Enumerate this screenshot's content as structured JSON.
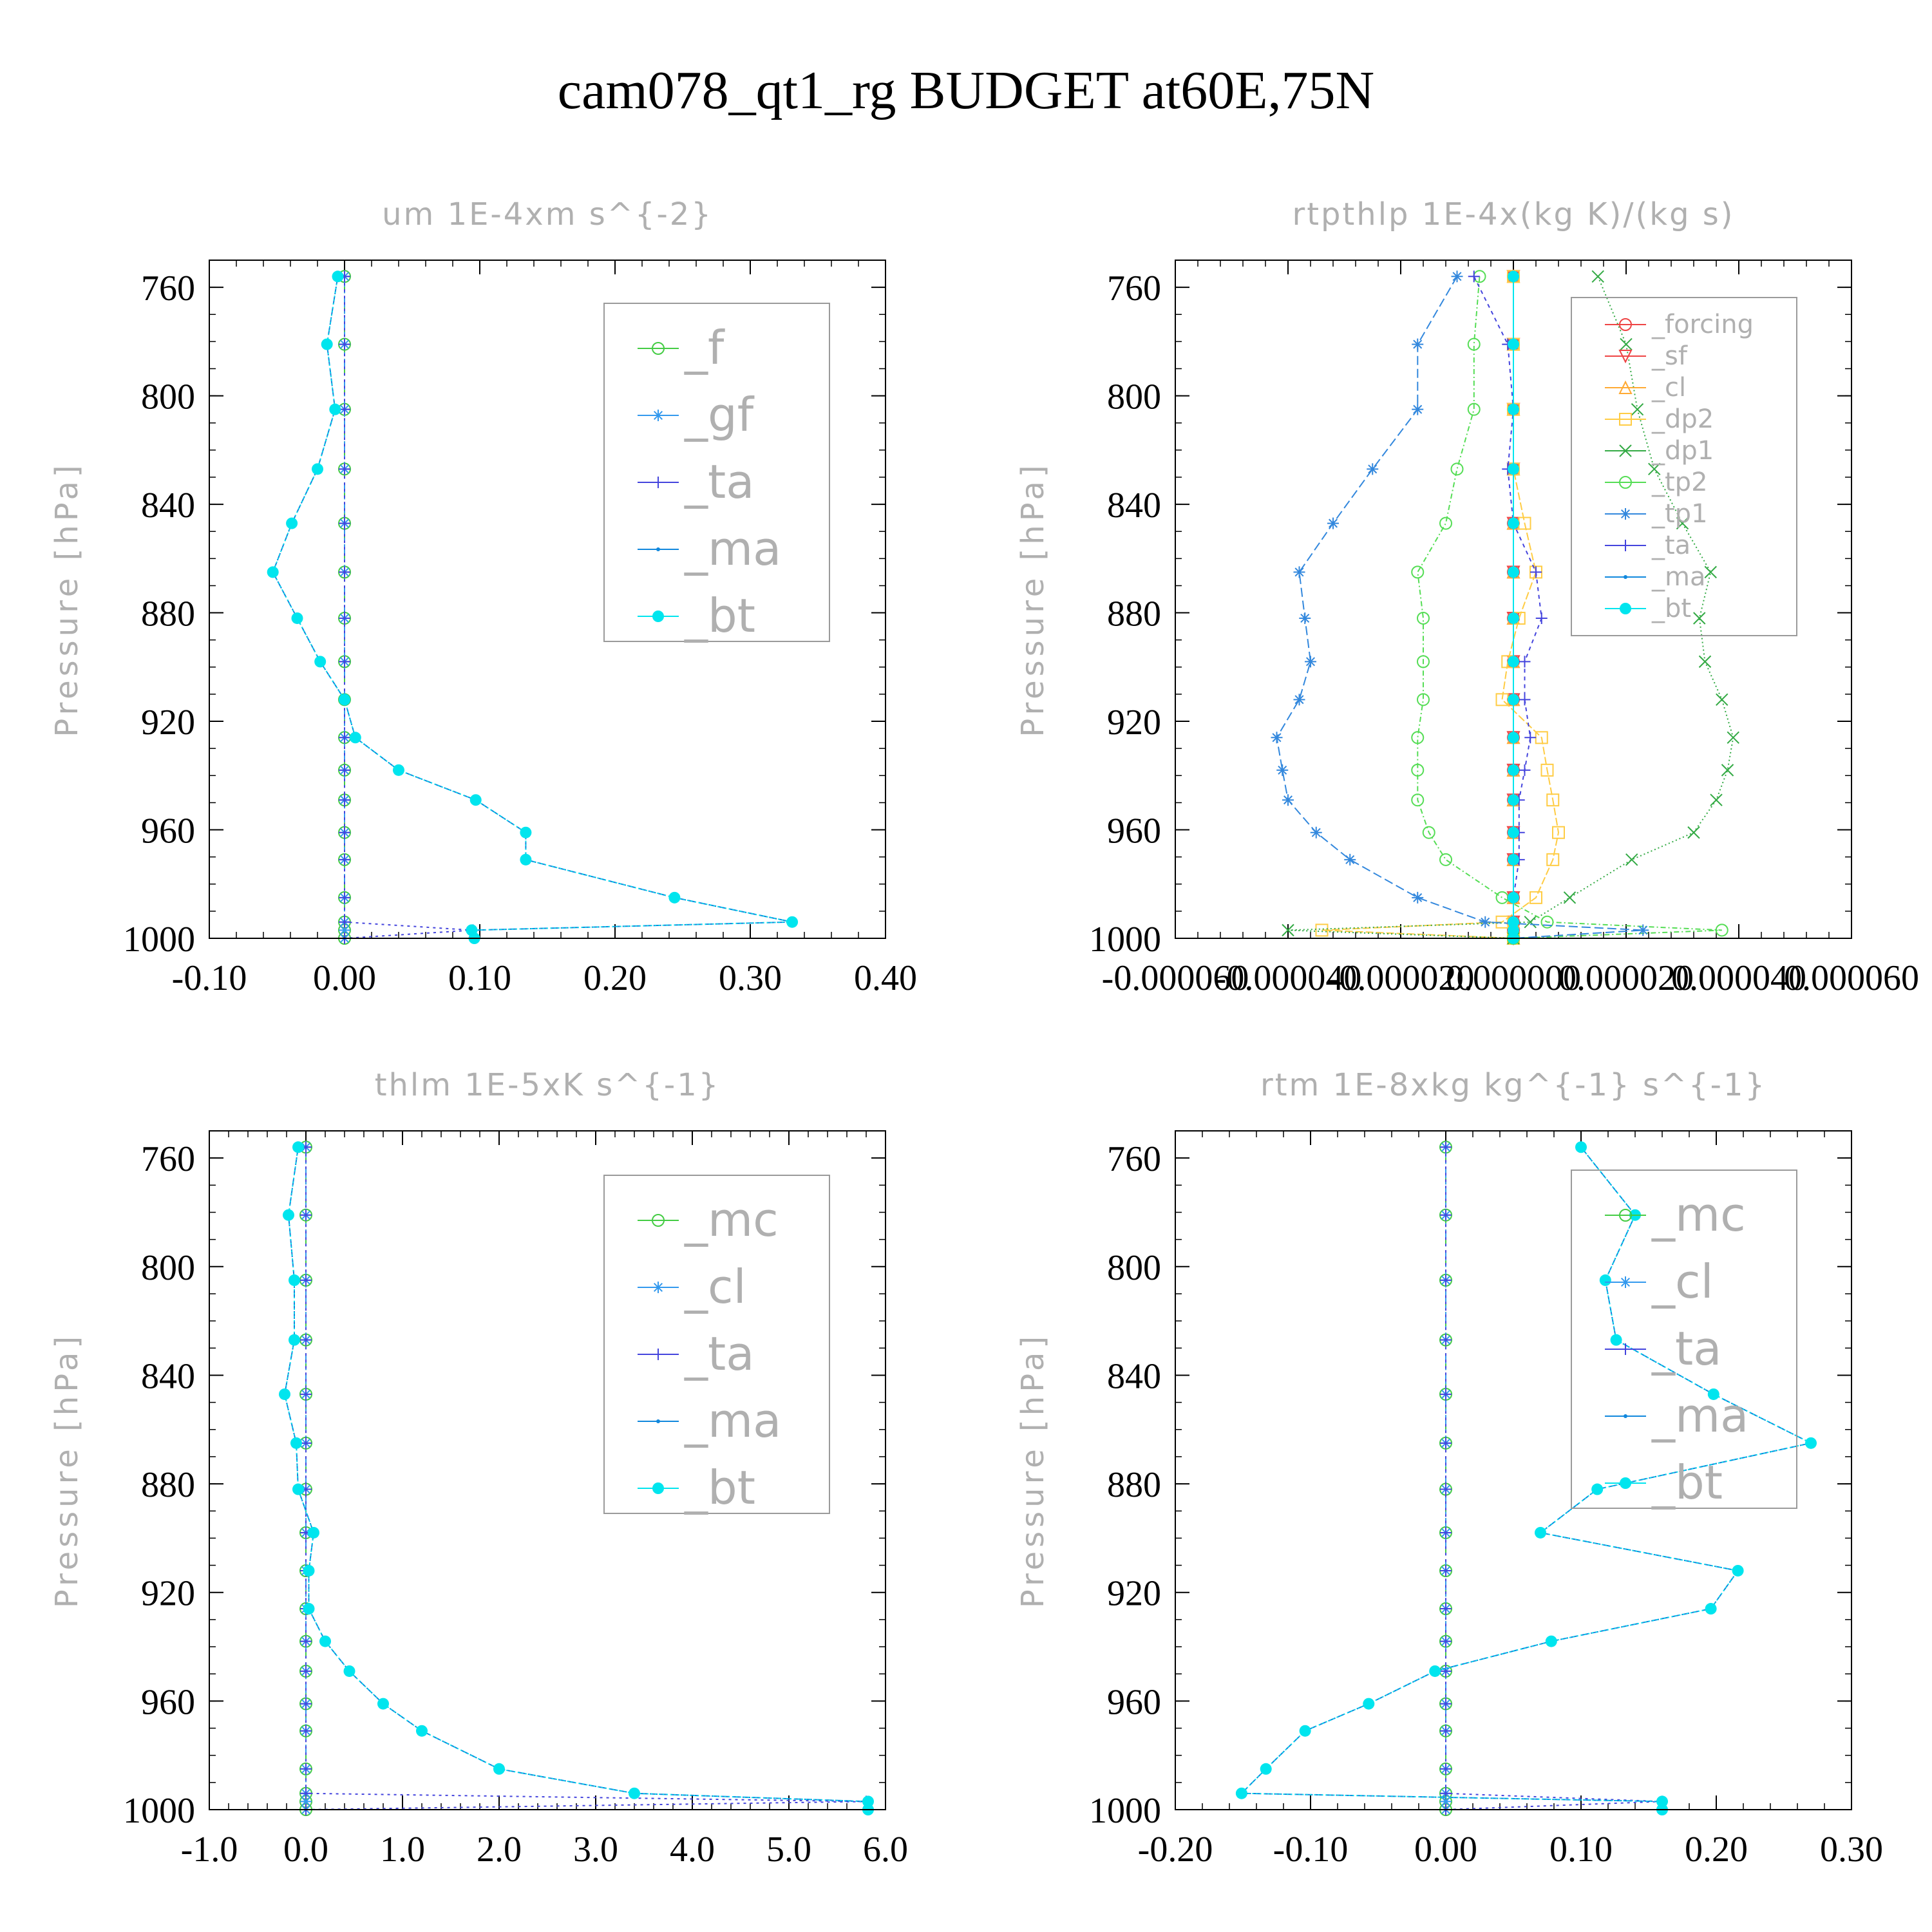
{
  "figure_title": "cam078_qt1_rg  BUDGET at60E,75N",
  "chart_data": [
    {
      "type": "line",
      "title": "um  1E-4xm s^{-2}",
      "ylabel": "Pressure [hPa]",
      "xlim": [
        -0.1,
        0.4
      ],
      "x_ticks": [
        "-0.10",
        "0.00",
        "0.10",
        "0.20",
        "0.30",
        "0.40"
      ],
      "ylim": [
        750,
        1000
      ],
      "y_ticks": [
        "760",
        "800",
        "840",
        "880",
        "920",
        "960",
        "1000"
      ],
      "y_values": [
        756,
        781,
        805,
        827,
        847,
        865,
        882,
        898,
        912,
        926,
        938,
        949,
        961,
        971,
        985,
        994,
        997,
        1000
      ],
      "legend": [
        "_f",
        "_gf",
        "_ta",
        "_ma",
        "_bt"
      ],
      "series": [
        {
          "name": "_f",
          "color": "#44cc44",
          "marker": "circle",
          "values": [
            0,
            0,
            0,
            0,
            0,
            0,
            0,
            0,
            0,
            0,
            0,
            0,
            0,
            0,
            0,
            0,
            0,
            0
          ]
        },
        {
          "name": "_gf",
          "color": "#3399ee",
          "marker": "star",
          "values": [
            0,
            0,
            0,
            0,
            0,
            0,
            0,
            0,
            0,
            0,
            0,
            0,
            0,
            0,
            0,
            0,
            0,
            0
          ]
        },
        {
          "name": "_ta",
          "color": "#4444dd",
          "marker": "plus",
          "values": [
            0,
            0,
            0,
            0,
            0,
            0,
            0,
            0,
            0,
            0,
            0,
            0,
            0,
            0,
            0,
            0,
            0.095,
            0
          ]
        },
        {
          "name": "_ma",
          "color": "#1188dd",
          "marker": "dot",
          "values": [
            -0.005,
            -0.013,
            -0.007,
            -0.02,
            -0.039,
            -0.053,
            -0.035,
            -0.018,
            0,
            0.008,
            0.04,
            0.097,
            0.134,
            0.134,
            0.244,
            0.331,
            0.094,
            0.096
          ]
        },
        {
          "name": "_bt",
          "color": "#00e5ee",
          "marker": "bigdot",
          "values": [
            -0.005,
            -0.013,
            -0.007,
            -0.02,
            -0.039,
            -0.053,
            -0.035,
            -0.018,
            0,
            0.008,
            0.04,
            0.097,
            0.134,
            0.134,
            0.244,
            0.331,
            0.094,
            0.096
          ]
        }
      ]
    },
    {
      "type": "line",
      "title": "rtpthlp  1E-4x(kg K)/(kg s)",
      "ylabel": "Pressure [hPa]",
      "xlim": [
        -6e-05,
        6e-05
      ],
      "x_ticks": [
        "-0.000060",
        "-0.000040",
        "-0.000020",
        "0.000000",
        "0.000020",
        "0.000040",
        "0.000060"
      ],
      "ylim": [
        750,
        1000
      ],
      "y_ticks": [
        "760",
        "800",
        "840",
        "880",
        "920",
        "960",
        "1000"
      ],
      "y_values": [
        756,
        781,
        805,
        827,
        847,
        865,
        882,
        898,
        912,
        926,
        938,
        949,
        961,
        971,
        985,
        994,
        997,
        1000
      ],
      "legend": [
        "_forcing",
        "_sf",
        "_cl",
        "_dp2",
        "_dp1",
        "_tp2",
        "_tp1",
        "_ta",
        "_ma",
        "_bt"
      ],
      "series": [
        {
          "name": "_forcing",
          "color": "#ee4444",
          "marker": "circle",
          "values": [
            0,
            0,
            0,
            0,
            0,
            0,
            0,
            0,
            0,
            0,
            0,
            0,
            0,
            0,
            0,
            0,
            0,
            0
          ]
        },
        {
          "name": "_sf",
          "color": "#ee4444",
          "marker": "triangle-down",
          "values": [
            0,
            0,
            0,
            0,
            0,
            0,
            0,
            0,
            0,
            0,
            0,
            0,
            0,
            0,
            0,
            0,
            0,
            0
          ]
        },
        {
          "name": "_cl",
          "color": "#ffaa33",
          "marker": "triangle-up",
          "values": [
            0,
            0,
            0,
            0,
            0,
            0,
            0,
            0,
            0,
            0,
            0,
            0,
            0,
            0,
            0,
            0,
            0,
            0
          ]
        },
        {
          "name": "_dp2",
          "color": "#ffcc44",
          "marker": "square",
          "values": [
            0,
            0,
            0,
            0,
            2e-06,
            4e-06,
            1e-06,
            -1e-06,
            -2e-06,
            5e-06,
            6e-06,
            7e-06,
            8e-06,
            7e-06,
            4e-06,
            -2e-06,
            -3.4e-05,
            0
          ]
        },
        {
          "name": "_dp1",
          "color": "#33aa44",
          "marker": "cross",
          "values": [
            1.5e-05,
            2e-05,
            2.2e-05,
            2.5e-05,
            3e-05,
            3.5e-05,
            3.3e-05,
            3.4e-05,
            3.7e-05,
            3.9e-05,
            3.8e-05,
            3.6e-05,
            3.2e-05,
            2.1e-05,
            1e-05,
            3e-06,
            -4e-05,
            0
          ]
        },
        {
          "name": "_tp2",
          "color": "#55dd55",
          "marker": "circle",
          "values": [
            -6e-06,
            -7e-06,
            -7e-06,
            -1e-05,
            -1.2e-05,
            -1.7e-05,
            -1.6e-05,
            -1.6e-05,
            -1.6e-05,
            -1.7e-05,
            -1.7e-05,
            -1.7e-05,
            -1.5e-05,
            -1.2e-05,
            -2e-06,
            6e-06,
            3.7e-05,
            0
          ]
        },
        {
          "name": "_tp1",
          "color": "#3388dd",
          "marker": "star",
          "values": [
            -1e-05,
            -1.7e-05,
            -1.7e-05,
            -2.5e-05,
            -3.2e-05,
            -3.8e-05,
            -3.7e-05,
            -3.6e-05,
            -3.8e-05,
            -4.2e-05,
            -4.1e-05,
            -4e-05,
            -3.5e-05,
            -2.9e-05,
            -1.7e-05,
            -5e-06,
            2.3e-05,
            0
          ]
        },
        {
          "name": "_ta",
          "color": "#4444dd",
          "marker": "plus",
          "values": [
            -7e-06,
            -1e-06,
            0,
            -1e-06,
            0,
            4e-06,
            5e-06,
            2e-06,
            2e-06,
            3e-06,
            2e-06,
            1e-06,
            1e-06,
            1e-06,
            0,
            0,
            0,
            0
          ]
        },
        {
          "name": "_ma",
          "color": "#1188dd",
          "marker": "dot",
          "values": [
            0,
            0,
            0,
            0,
            0,
            0,
            0,
            0,
            0,
            0,
            0,
            0,
            0,
            0,
            0,
            0,
            0,
            0
          ]
        },
        {
          "name": "_bt",
          "color": "#00e5ee",
          "marker": "bigdot",
          "values": [
            0,
            0,
            0,
            0,
            0,
            0,
            0,
            0,
            0,
            0,
            0,
            0,
            0,
            0,
            0,
            0,
            0,
            0
          ]
        }
      ]
    },
    {
      "type": "line",
      "title": "thlm  1E-5xK s^{-1}",
      "ylabel": "Pressure [hPa]",
      "xlim": [
        -1.0,
        6.0
      ],
      "x_ticks": [
        "-1.0",
        "0.0",
        "1.0",
        "2.0",
        "3.0",
        "4.0",
        "5.0",
        "6.0"
      ],
      "ylim": [
        750,
        1000
      ],
      "y_ticks": [
        "760",
        "800",
        "840",
        "880",
        "920",
        "960",
        "1000"
      ],
      "y_values": [
        756,
        781,
        805,
        827,
        847,
        865,
        882,
        898,
        912,
        926,
        938,
        949,
        961,
        971,
        985,
        994,
        997,
        1000
      ],
      "legend": [
        "_mc",
        "_cl",
        "_ta",
        "_ma",
        "_bt"
      ],
      "series": [
        {
          "name": "_mc",
          "color": "#44cc44",
          "marker": "circle",
          "values": [
            0,
            0,
            0,
            0,
            0,
            0,
            0,
            0,
            0,
            0,
            0,
            0,
            0,
            0,
            0,
            0,
            0,
            0
          ]
        },
        {
          "name": "_cl",
          "color": "#3399ee",
          "marker": "star",
          "values": [
            0,
            0,
            0,
            0,
            0,
            0,
            0,
            0,
            0,
            0,
            0,
            0,
            0,
            0,
            0,
            0,
            0,
            0
          ]
        },
        {
          "name": "_ta",
          "color": "#4444dd",
          "marker": "plus",
          "values": [
            0,
            0,
            0,
            0,
            0,
            0,
            0,
            0,
            0,
            0,
            0,
            0,
            0,
            0,
            0,
            0,
            5.8,
            0
          ]
        },
        {
          "name": "_ma",
          "color": "#1188dd",
          "marker": "dot",
          "values": [
            -0.08,
            -0.18,
            -0.12,
            -0.12,
            -0.22,
            -0.1,
            -0.08,
            0.08,
            0.03,
            0.03,
            0.2,
            0.45,
            0.8,
            1.2,
            2.0,
            3.4,
            5.82,
            5.82
          ]
        },
        {
          "name": "_bt",
          "color": "#00e5ee",
          "marker": "bigdot",
          "values": [
            -0.08,
            -0.18,
            -0.12,
            -0.12,
            -0.22,
            -0.1,
            -0.08,
            0.08,
            0.03,
            0.03,
            0.2,
            0.45,
            0.8,
            1.2,
            2.0,
            3.4,
            5.82,
            5.82
          ]
        }
      ]
    },
    {
      "type": "line",
      "title": "rtm  1E-8xkg kg^{-1} s^{-1}",
      "ylabel": "Pressure [hPa]",
      "xlim": [
        -0.2,
        0.3
      ],
      "x_ticks": [
        "-0.20",
        "-0.10",
        "0.00",
        "0.10",
        "0.20",
        "0.30"
      ],
      "ylim": [
        750,
        1000
      ],
      "y_ticks": [
        "760",
        "800",
        "840",
        "880",
        "920",
        "960",
        "1000"
      ],
      "y_values": [
        756,
        781,
        805,
        827,
        847,
        865,
        882,
        898,
        912,
        926,
        938,
        949,
        961,
        971,
        985,
        994,
        997,
        1000
      ],
      "legend": [
        "_mc",
        "_cl",
        "_ta",
        "_ma",
        "_bt"
      ],
      "series": [
        {
          "name": "_mc",
          "color": "#44cc44",
          "marker": "circle",
          "values": [
            0,
            0,
            0,
            0,
            0,
            0,
            0,
            0,
            0,
            0,
            0,
            0,
            0,
            0,
            0,
            0,
            0,
            0
          ]
        },
        {
          "name": "_cl",
          "color": "#3399ee",
          "marker": "star",
          "values": [
            0,
            0,
            0,
            0,
            0,
            0,
            0,
            0,
            0,
            0,
            0,
            0,
            0,
            0,
            0,
            0,
            0,
            0
          ]
        },
        {
          "name": "_ta",
          "color": "#4444dd",
          "marker": "plus",
          "values": [
            0,
            0,
            0,
            0,
            0,
            0,
            0,
            0,
            0,
            0,
            0,
            0,
            0,
            0,
            0,
            0,
            0.16,
            0
          ]
        },
        {
          "name": "_ma",
          "color": "#1188dd",
          "marker": "dot",
          "values": [
            0.1,
            0.14,
            0.118,
            0.126,
            0.198,
            0.27,
            0.112,
            0.07,
            0.216,
            0.196,
            0.078,
            -0.008,
            -0.057,
            -0.104,
            -0.133,
            -0.151,
            0.16,
            0.16
          ]
        },
        {
          "name": "_bt",
          "color": "#00e5ee",
          "marker": "bigdot",
          "values": [
            0.1,
            0.14,
            0.118,
            0.126,
            0.198,
            0.27,
            0.112,
            0.07,
            0.216,
            0.196,
            0.078,
            -0.008,
            -0.057,
            -0.104,
            -0.133,
            -0.151,
            0.16,
            0.16
          ]
        }
      ]
    }
  ]
}
